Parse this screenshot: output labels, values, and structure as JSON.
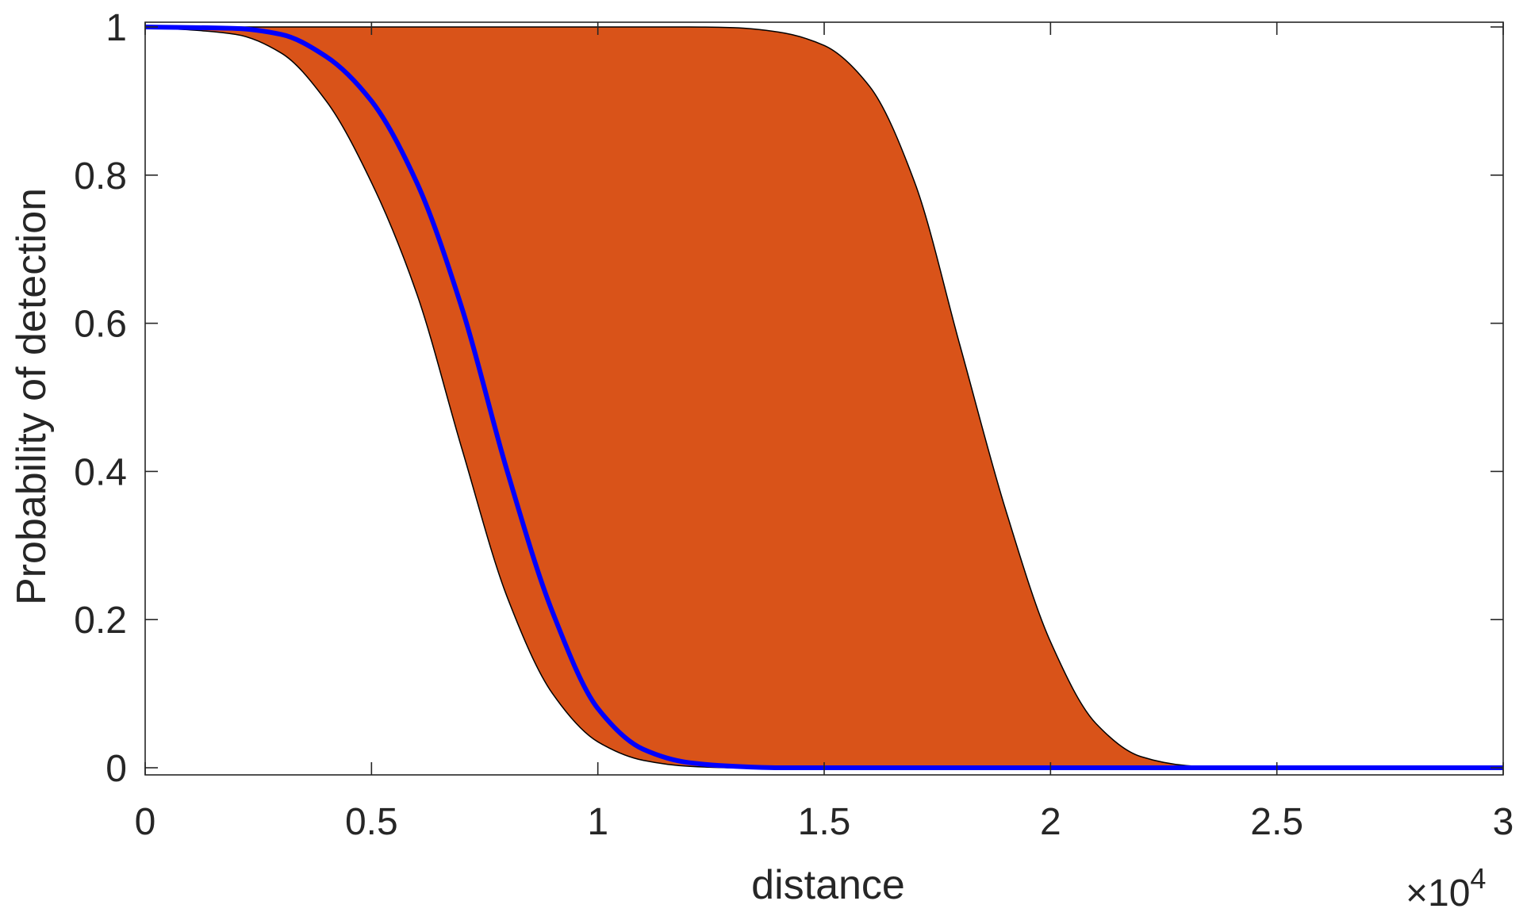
{
  "chart_data": {
    "type": "area",
    "xlabel": "distance",
    "ylabel": "Probability of detection",
    "x_multiplier": "×10",
    "x_multiplier_exp": "4",
    "xlim": [
      0,
      30000
    ],
    "ylim": [
      0,
      1
    ],
    "xticks": [
      0,
      5000,
      10000,
      15000,
      20000,
      25000,
      30000
    ],
    "xtick_labels": [
      "0",
      "0.5",
      "1",
      "1.5",
      "2",
      "2.5",
      "3"
    ],
    "yticks": [
      0,
      0.2,
      0.4,
      0.6,
      0.8,
      1
    ],
    "ytick_labels": [
      "0",
      "0.2",
      "0.4",
      "0.6",
      "0.8",
      "1"
    ],
    "grid": false,
    "x": [
      0,
      2000,
      3000,
      4000,
      5000,
      6000,
      7000,
      8000,
      9000,
      10000,
      11000,
      12000,
      13000,
      14000,
      15000,
      16000,
      17000,
      18000,
      19000,
      20000,
      21000,
      22000,
      23000,
      24000,
      25000,
      30000
    ],
    "series": [
      {
        "role": "band-lower",
        "color": "#000000",
        "values": [
          1.0,
          0.99,
          0.965,
          0.9,
          0.79,
          0.64,
          0.43,
          0.23,
          0.1,
          0.035,
          0.01,
          0.002,
          0.0,
          0.0,
          0.0,
          0.0,
          0.0,
          0.0,
          0.0,
          0.0,
          0.0,
          0.0,
          0.0,
          0.0,
          0.0,
          0.0
        ]
      },
      {
        "role": "band-upper",
        "color": "#000000",
        "values": [
          1.0,
          1.0,
          1.0,
          1.0,
          1.0,
          1.0,
          1.0,
          1.0,
          1.0,
          1.0,
          1.0,
          1.0,
          0.999,
          0.993,
          0.975,
          0.92,
          0.79,
          0.57,
          0.35,
          0.17,
          0.06,
          0.015,
          0.003,
          0.0,
          0.0,
          0.0
        ]
      },
      {
        "role": "mean",
        "color": "#0000ff",
        "values": [
          1.0,
          0.998,
          0.99,
          0.96,
          0.9,
          0.79,
          0.62,
          0.4,
          0.21,
          0.08,
          0.025,
          0.007,
          0.002,
          0.0,
          0.0,
          0.0,
          0.0,
          0.0,
          0.0,
          0.0,
          0.0,
          0.0,
          0.0,
          0.0,
          0.0,
          0.0
        ]
      }
    ],
    "band_color": "#d95319",
    "mean_color": "#0000ff",
    "axis_color": "#262626"
  }
}
